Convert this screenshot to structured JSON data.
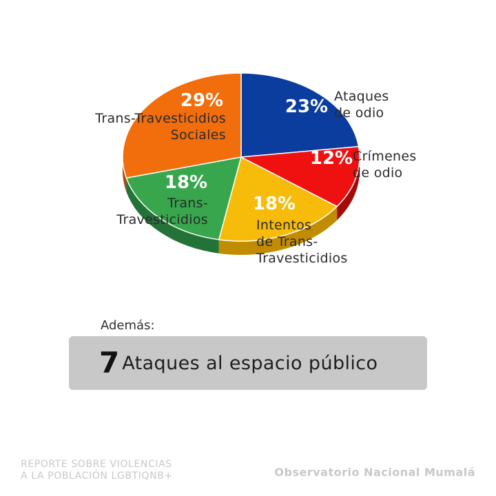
{
  "chart_data": {
    "type": "pie",
    "style": "3d-tilted",
    "slices": [
      {
        "label_lines": [
          "Ataques",
          "de odio"
        ],
        "value": 23,
        "pct_label": "23%",
        "color": "#0b3d9e",
        "side_color": "#082a70"
      },
      {
        "label_lines": [
          "Crímenes",
          "de odio"
        ],
        "value": 12,
        "pct_label": "12%",
        "color": "#ef1010",
        "side_color": "#a50a0a"
      },
      {
        "label_lines": [
          "Intentos",
          "de Trans-",
          "Travesticidios"
        ],
        "value": 18,
        "pct_label": "18%",
        "color": "#f7bb0a",
        "side_color": "#c28c00"
      },
      {
        "label_lines": [
          "Trans-",
          "Travesticidios"
        ],
        "value": 18,
        "pct_label": "18%",
        "color": "#37a64c",
        "side_color": "#237238"
      },
      {
        "label_lines": [
          "Trans-Travesticidios",
          "Sociales"
        ],
        "value": 29,
        "pct_label": "29%",
        "color": "#f26d0c",
        "side_color": "#b04a05"
      }
    ]
  },
  "extra": {
    "intro": "Además:",
    "number": "7",
    "text": "Ataques al espacio público",
    "box_color": "#c8c8c8"
  },
  "footer": {
    "report_line1": "REPORTE SOBRE VIOLENCIAS",
    "report_line2": "A LA POBLACIÓN LGBTIQNB+",
    "org": "Observatorio Nacional Mumalá"
  }
}
